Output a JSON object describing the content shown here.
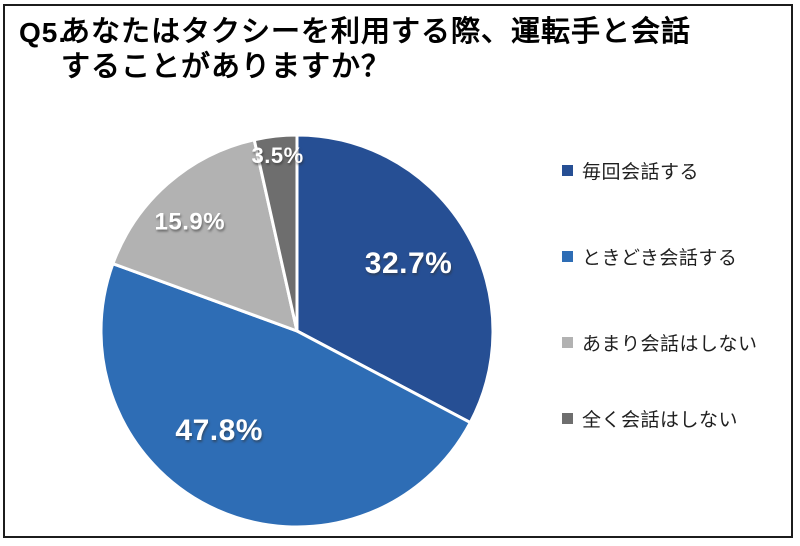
{
  "title": {
    "prefix": "Q5.",
    "line1": "あなたはタクシーを利用する際、運転手と会話",
    "line2": "することがありますか？"
  },
  "chart_data": {
    "type": "pie",
    "title": "Q5. あなたはタクシーを利用する際、運転手と会話することがありますか？",
    "start_angle_deg": 0,
    "direction": "clockwise",
    "legend_position": "right",
    "data_label_color": "#FFFFFF",
    "slices": [
      {
        "label": "毎回会話する",
        "value": 32.7,
        "display": "32.7%",
        "color": "#264F94"
      },
      {
        "label": "ときどき会話する",
        "value": 47.8,
        "display": "47.8%",
        "color": "#2E6DB5"
      },
      {
        "label": "あまり会話はしない",
        "value": 15.9,
        "display": "15.9%",
        "color": "#B2B2B2"
      },
      {
        "label": "全く会話はしない",
        "value": 3.5,
        "display": "3.5%",
        "color": "#6E6E6E"
      }
    ]
  }
}
